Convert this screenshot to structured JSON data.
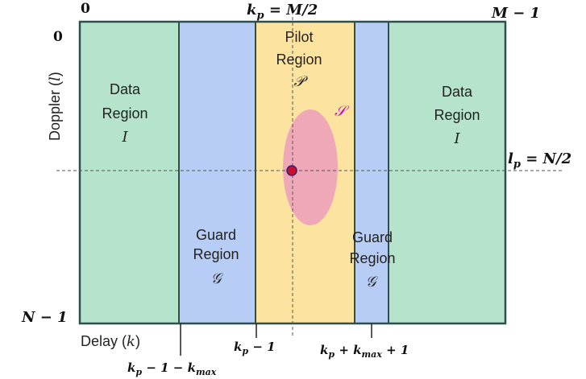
{
  "colors": {
    "data_region": "#b5e3cb",
    "guard_region": "#b8cdf5",
    "pilot_region": "#fde3a0",
    "spread_region": "#eea8b8",
    "pilot_point": "#c8102e",
    "spread_label": "#cc00cc",
    "outline": "#2f4f4f"
  },
  "regions": {
    "data_left": {
      "line1": "Data",
      "line2": "Region",
      "symbol": "I"
    },
    "guard_left": {
      "line1": "Guard",
      "line2": "Region",
      "symbol": "𝒢"
    },
    "pilot": {
      "line1": "Pilot",
      "line2": "Region",
      "symbol": "𝒫"
    },
    "guard_right": {
      "line1": "Guard",
      "line2": "Region",
      "symbol": "𝒢"
    },
    "data_right": {
      "line1": "Data",
      "line2": "Region",
      "symbol": "I"
    },
    "spread_symbol": "𝒮"
  },
  "axes": {
    "top_left_label": "0",
    "top_mid_label": "k",
    "top_mid_sub": "p",
    "top_mid_rest": " = M/2",
    "top_right_label": "M − 1",
    "left_top_label": "0",
    "left_bottom_label": "N − 1",
    "y_axis_label": "Doppler (",
    "y_axis_var": "l",
    "y_axis_close": ")",
    "x_axis_label": "Delay (",
    "x_axis_var": "k",
    "x_axis_close": ")",
    "right_mid_label": "l",
    "right_mid_sub": "p",
    "right_mid_rest": " = N/2"
  },
  "bottom_labels": {
    "a_main": "k",
    "a_sub": "p",
    "a_rest": " − 1 − k",
    "a_sub2": "max",
    "b_main": "k",
    "b_sub": "p",
    "b_rest": " − 1",
    "c_main": "k",
    "c_sub": "p",
    "c_rest": " + k",
    "c_sub2": "max",
    "c_tail": " + 1"
  }
}
